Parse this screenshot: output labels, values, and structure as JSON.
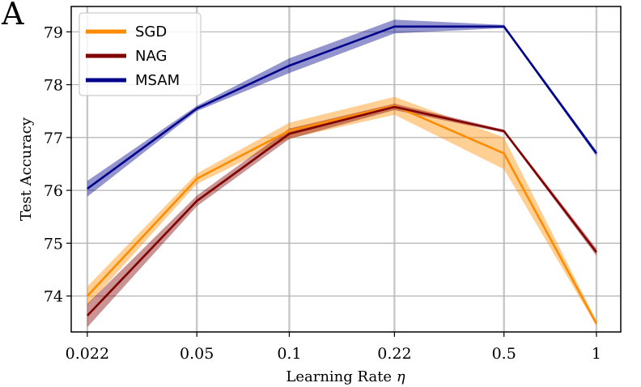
{
  "panel_label": "A",
  "chart_data": {
    "type": "line",
    "title": "",
    "xlabel": "Learning Rate",
    "xlabel_symbol": "η",
    "ylabel": "Test Accuracy",
    "categories": [
      "0.022",
      "0.05",
      "0.1",
      "0.22",
      "0.5",
      "1"
    ],
    "x": [
      0.022,
      0.05,
      0.1,
      0.22,
      0.5,
      1
    ],
    "xscale": "log",
    "xlim": [
      0.0195,
      1.2
    ],
    "ylim": [
      73.32,
      79.48
    ],
    "yticks": [
      74,
      75,
      76,
      77,
      78,
      79
    ],
    "ytick_labels": [
      "74",
      "75",
      "76",
      "77",
      "78",
      "79"
    ],
    "grid": true,
    "legend_position": "top-left",
    "series": [
      {
        "name": "SGD",
        "color": "#ff8c00",
        "values": [
          74.0,
          76.22,
          77.13,
          77.6,
          76.7,
          73.48
        ],
        "band": [
          0.18,
          0.1,
          0.15,
          0.17,
          0.3,
          0.05
        ]
      },
      {
        "name": "NAG",
        "color": "#800000",
        "values": [
          73.63,
          75.8,
          77.07,
          77.58,
          77.12,
          74.83
        ],
        "band": [
          0.22,
          0.1,
          0.1,
          0.06,
          0.03,
          0.07
        ]
      },
      {
        "name": "MSAM",
        "color": "#00008b",
        "values": [
          76.03,
          77.55,
          78.36,
          79.1,
          79.1,
          76.7
        ],
        "band": [
          0.15,
          0.05,
          0.14,
          0.13,
          0.03,
          0.05
        ]
      }
    ]
  }
}
